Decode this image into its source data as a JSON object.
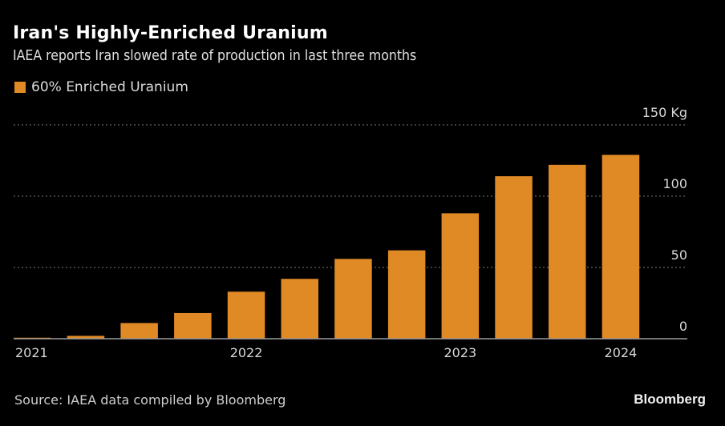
{
  "chart_data": {
    "type": "bar",
    "title": "Iran's Highly-Enriched Uranium",
    "subtitle": "IAEA reports Iran slowed rate of production in last three months",
    "legend": {
      "position": "top-left",
      "entries": [
        "60% Enriched Uranium"
      ]
    },
    "series": [
      {
        "name": "60% Enriched Uranium",
        "color": "#E08A25",
        "values": [
          0.7,
          2,
          11,
          18,
          33,
          42,
          56,
          62,
          88,
          114,
          122,
          129
        ]
      }
    ],
    "x_tick_labels": [
      {
        "index": 0,
        "label": "2021"
      },
      {
        "index": 4,
        "label": "2022"
      },
      {
        "index": 8,
        "label": "2023"
      },
      {
        "index": 11,
        "label": "2024"
      }
    ],
    "y_axis": {
      "position": "right",
      "ylim": [
        0,
        150
      ],
      "ticks": [
        0,
        50,
        100,
        150
      ],
      "tick_labels": [
        "0",
        "50",
        "100",
        "150 Kg"
      ],
      "unit": "Kg"
    },
    "grid": true,
    "source": "Source: IAEA data compiled by Bloomberg",
    "brand": "Bloomberg"
  }
}
